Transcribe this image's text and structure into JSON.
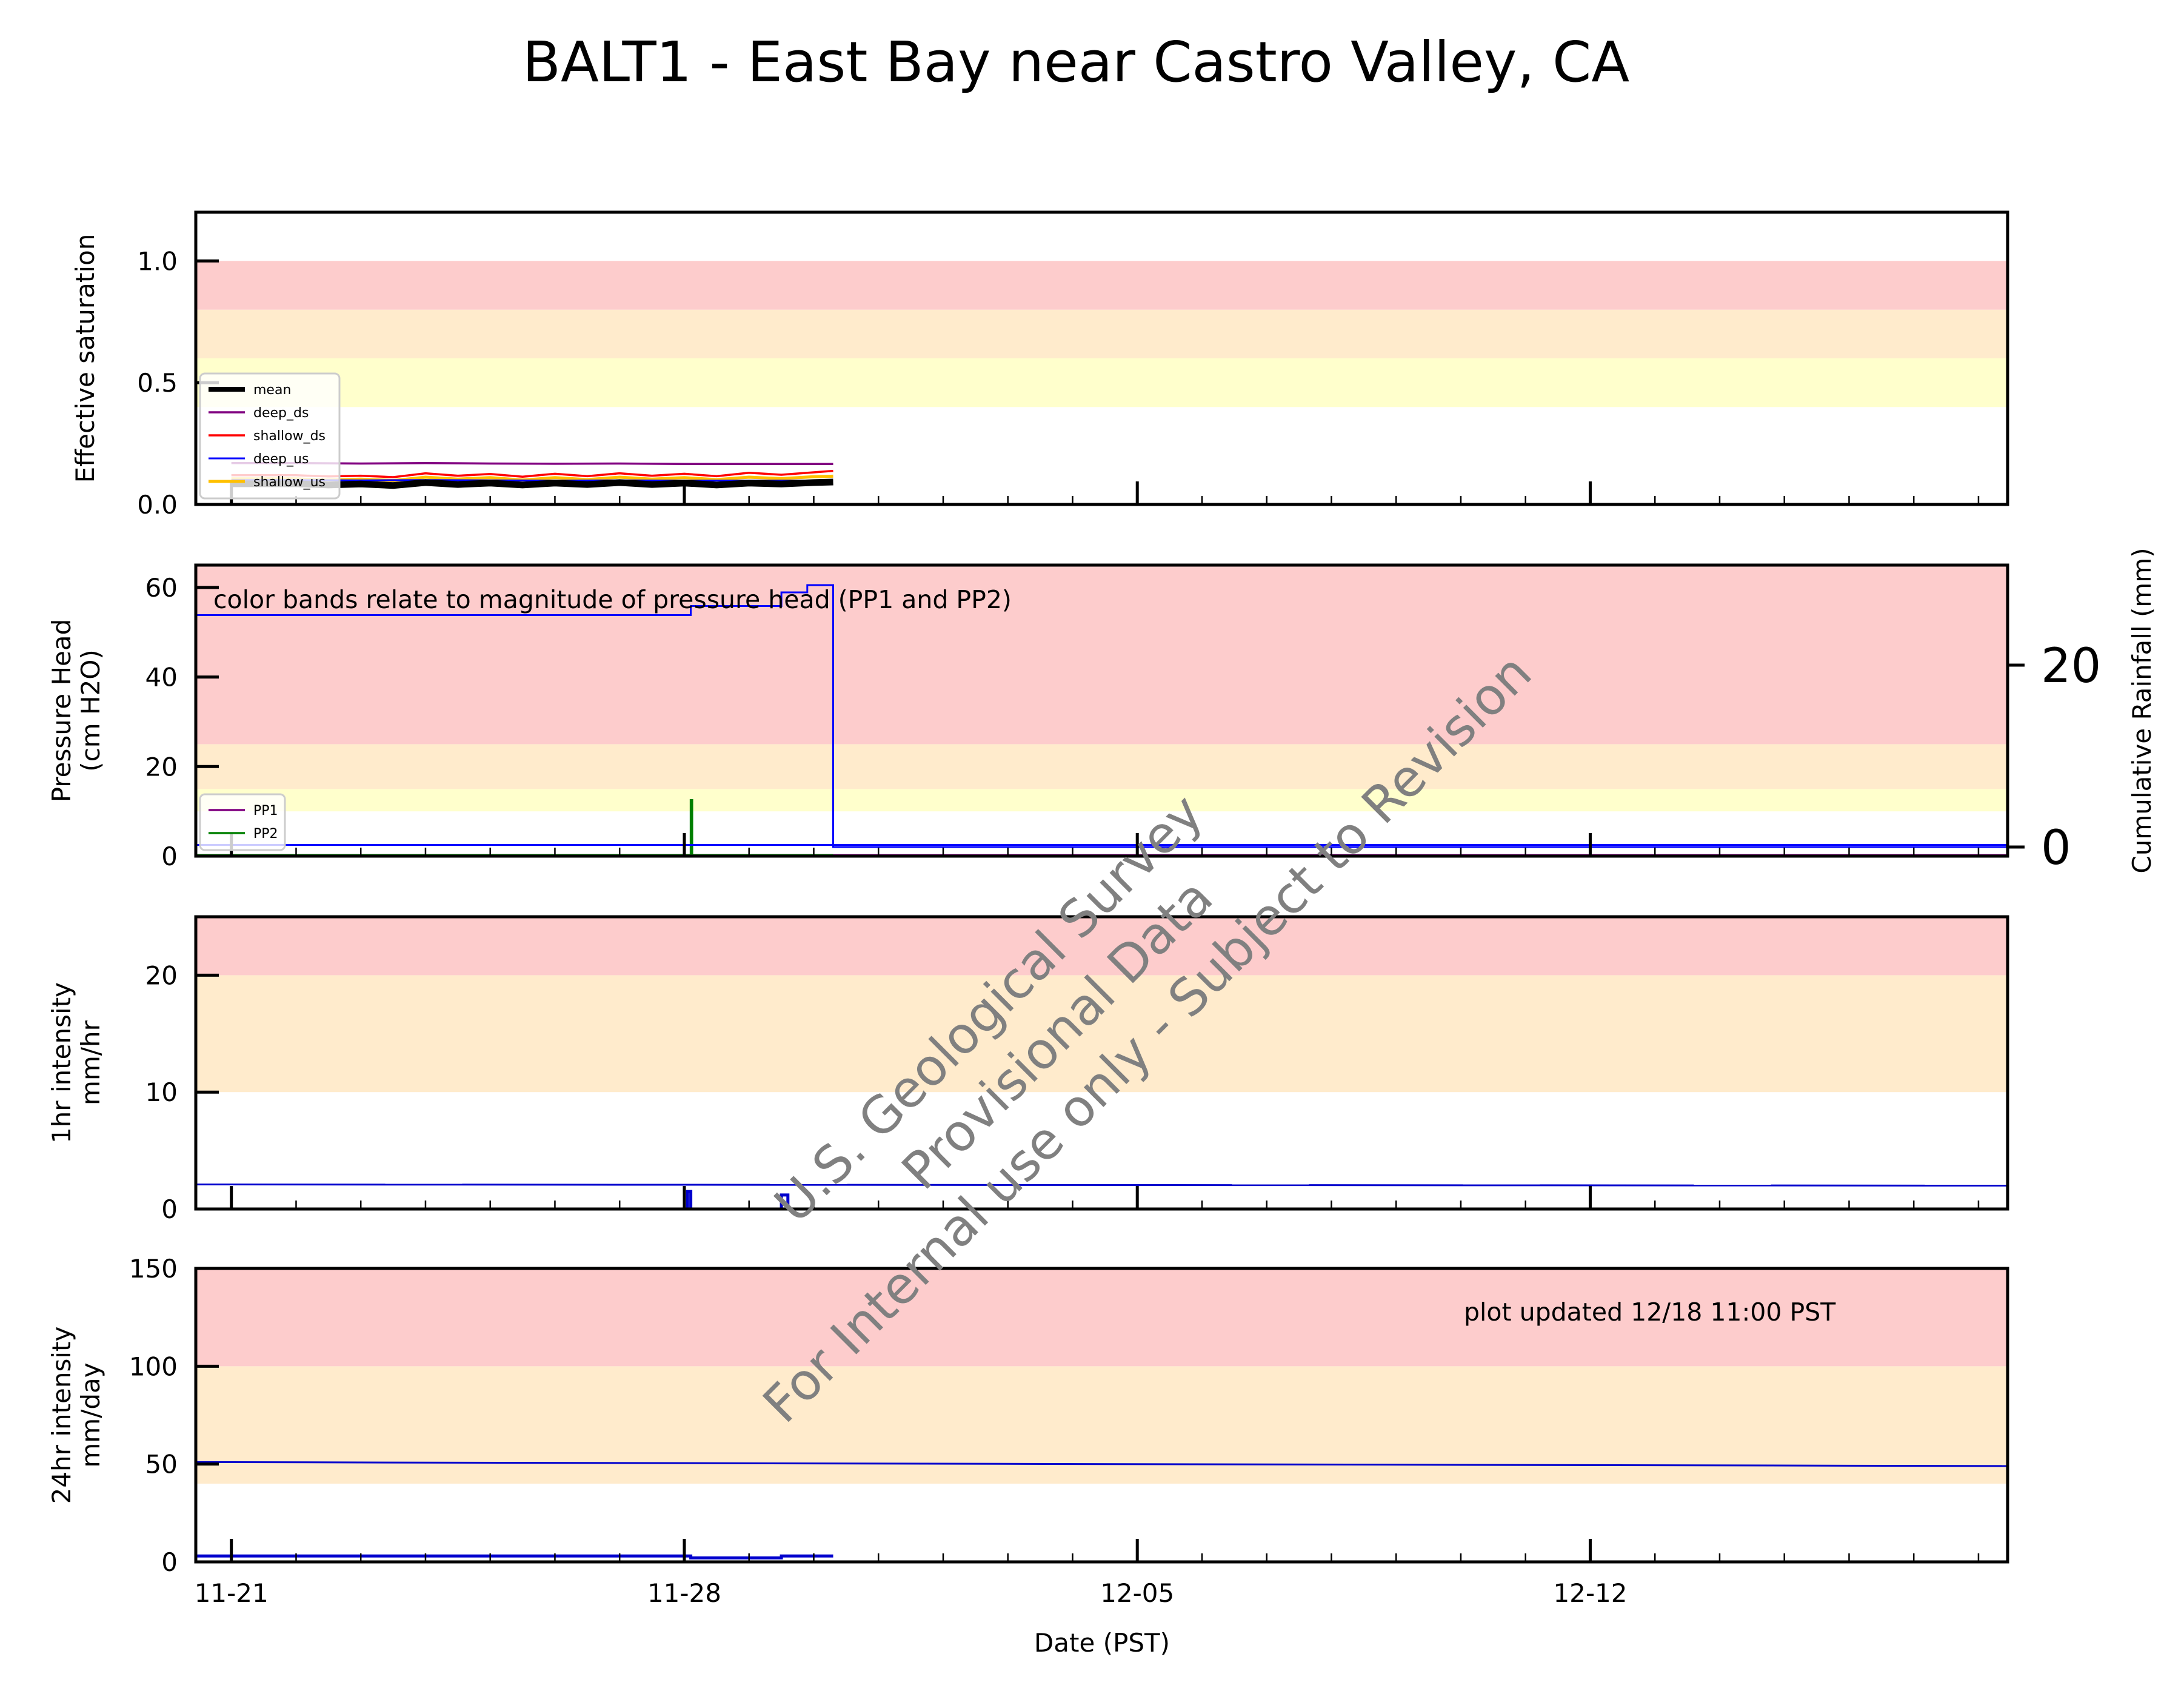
{
  "title": "BALT1 - East Bay near Castro Valley, CA",
  "watermark": [
    "U.S. Geological Survey",
    "Provisional Data",
    "For Internal use only - Subject to Revision"
  ],
  "annotations": {
    "color_bands": "color bands relate to magnitude of pressure head (PP1 and PP2)",
    "updated": "plot updated 12/18 11:00  PST"
  },
  "xaxis": {
    "label": "Date (PST)",
    "tick_labels": [
      "11-21",
      "11-28",
      "12-05",
      "12-12"
    ],
    "tick_values": [
      0,
      7,
      14,
      21
    ],
    "xlim": [
      -0.55,
      27.45
    ],
    "minor_step": 1
  },
  "colors": {
    "red_band": "#fdcccc",
    "orange_band": "#ffebcc",
    "yellow_band": "#ffffcc",
    "mean": "#000000",
    "deep_ds": "#800080",
    "shallow_ds": "#ff0000",
    "deep_us": "#0000ff",
    "shallow_us": "#ffc000",
    "PP1": "#800080",
    "PP2": "#008000",
    "rain": "#0000cd",
    "watermark": "#808080"
  },
  "chart_data": [
    {
      "type": "line",
      "id": "saturation",
      "ylabel": [
        "Effective saturation"
      ],
      "ylim": [
        0,
        1.2
      ],
      "yticks": [
        0,
        0.5,
        1.0
      ],
      "ytick_labels": [
        "0.0",
        "0.5",
        "1.0"
      ],
      "bands": [
        {
          "from": 0.4,
          "to": 0.6,
          "color": "yellow"
        },
        {
          "from": 0.6,
          "to": 0.8,
          "color": "orange"
        },
        {
          "from": 0.8,
          "to": 1.0,
          "color": "red"
        }
      ],
      "legend": {
        "placement": "lower-left",
        "entries": [
          "mean",
          "deep_ds",
          "shallow_ds",
          "deep_us",
          "shallow_us"
        ]
      },
      "series": [
        {
          "name": "deep_ds",
          "x": [
            0,
            1,
            2,
            3,
            4,
            5,
            6,
            7,
            8,
            9,
            9.3
          ],
          "y": [
            0.17,
            0.17,
            0.168,
            0.17,
            0.168,
            0.167,
            0.168,
            0.166,
            0.166,
            0.166,
            0.166
          ]
        },
        {
          "name": "shallow_ds",
          "x": [
            0,
            1,
            1.5,
            2,
            2.5,
            3,
            3.5,
            4,
            4.5,
            5,
            5.5,
            6,
            6.5,
            7,
            7.5,
            8,
            8.5,
            9,
            9.3
          ],
          "y": [
            0.12,
            0.12,
            0.115,
            0.118,
            0.112,
            0.128,
            0.118,
            0.125,
            0.114,
            0.126,
            0.116,
            0.128,
            0.118,
            0.126,
            0.116,
            0.13,
            0.122,
            0.132,
            0.138
          ]
        },
        {
          "name": "shallow_us",
          "x": [
            0,
            1,
            1.5,
            2,
            2.5,
            3,
            3.5,
            4,
            4.5,
            5,
            5.5,
            6,
            6.5,
            7,
            7.5,
            8,
            8.5,
            9,
            9.3
          ],
          "y": [
            0.105,
            0.105,
            0.1,
            0.104,
            0.098,
            0.112,
            0.104,
            0.11,
            0.1,
            0.11,
            0.102,
            0.112,
            0.104,
            0.11,
            0.102,
            0.112,
            0.106,
            0.114,
            0.116
          ]
        },
        {
          "name": "deep_us",
          "x": [
            0,
            1,
            2,
            3,
            4,
            5,
            6,
            7,
            8,
            9,
            9.3
          ],
          "y": [
            0.1,
            0.1,
            0.099,
            0.1,
            0.099,
            0.098,
            0.099,
            0.098,
            0.098,
            0.098,
            0.098
          ]
        },
        {
          "name": "mean",
          "x": [
            0,
            1,
            1.5,
            2,
            2.5,
            3,
            3.5,
            4,
            4.5,
            5,
            5.5,
            6,
            6.5,
            7,
            7.5,
            8,
            8.5,
            9,
            9.3
          ],
          "y": [
            0.085,
            0.085,
            0.08,
            0.084,
            0.078,
            0.09,
            0.082,
            0.088,
            0.08,
            0.088,
            0.082,
            0.09,
            0.082,
            0.088,
            0.08,
            0.088,
            0.084,
            0.09,
            0.092
          ]
        }
      ]
    },
    {
      "type": "line",
      "id": "pressure",
      "ylabel": [
        "Pressure Head",
        "(cm H2O)"
      ],
      "ylim": [
        0,
        65
      ],
      "yticks": [
        0,
        20,
        40,
        60
      ],
      "ytick_labels": [
        "0",
        "20",
        "40",
        "60"
      ],
      "y2label": "Cumulative Rainfall (mm)",
      "y2lim": [
        -1,
        31
      ],
      "y2ticks": [
        0,
        20
      ],
      "y2tick_labels": [
        "0",
        "20"
      ],
      "bands": [
        {
          "from": 10,
          "to": 15,
          "color": "yellow"
        },
        {
          "from": 15,
          "to": 25,
          "color": "orange"
        },
        {
          "from": 25,
          "to": 65,
          "color": "red"
        }
      ],
      "legend": {
        "placement": "lower-left",
        "entries": [
          "PP1",
          "PP2"
        ]
      },
      "series": [
        {
          "name": "PP1",
          "x": [
            -0.55,
            27.45
          ],
          "y": [
            0.2,
            0.2
          ]
        },
        {
          "name": "PP2",
          "x": [
            -0.55,
            7.1,
            7.1,
            7.12,
            7.12,
            9.3
          ],
          "y": [
            0.2,
            0.2,
            12.5,
            12.5,
            0.2,
            0.2
          ]
        },
        {
          "name": "cumulative_rainfall",
          "axis": "right",
          "steps": true,
          "x": [
            -0.55,
            7.1,
            7.1,
            8.5,
            8.5,
            8.9,
            8.9,
            9.3,
            9.3,
            27.45
          ],
          "y": [
            25.5,
            25.5,
            26.5,
            26.5,
            28,
            28,
            28.8,
            28.8,
            0,
            0
          ]
        },
        {
          "name": "cumulative_rainfall_level",
          "axis": "left",
          "x": [
            -0.55,
            27.45
          ],
          "y": [
            2.5,
            2.5
          ]
        }
      ]
    },
    {
      "type": "line",
      "id": "intensity_1hr",
      "ylabel": [
        "1hr intensity",
        "mm/hr"
      ],
      "ylim": [
        0,
        25
      ],
      "yticks": [
        0,
        10,
        20
      ],
      "ytick_labels": [
        "0",
        "10",
        "20"
      ],
      "bands": [
        {
          "from": 10,
          "to": 20,
          "color": "orange"
        },
        {
          "from": 20,
          "to": 25,
          "color": "red"
        }
      ],
      "series": [
        {
          "name": "threshold",
          "x": [
            -0.55,
            27.45
          ],
          "y": [
            2.1,
            2.0
          ]
        },
        {
          "name": "rain_1hr",
          "x": [
            -0.55,
            7.05,
            7.05,
            7.1,
            7.1,
            8.5,
            8.5,
            8.6,
            8.6,
            9.3
          ],
          "y": [
            0,
            0,
            1.5,
            1.5,
            0,
            0,
            1.2,
            1.2,
            0,
            0
          ]
        }
      ]
    },
    {
      "type": "line",
      "id": "intensity_24hr",
      "ylabel": [
        "24hr intensity",
        "mm/day"
      ],
      "ylim": [
        0,
        150
      ],
      "yticks": [
        0,
        50,
        100,
        150
      ],
      "ytick_labels": [
        "0",
        "50",
        "100",
        "150"
      ],
      "bands": [
        {
          "from": 40,
          "to": 100,
          "color": "orange"
        },
        {
          "from": 100,
          "to": 150,
          "color": "red"
        }
      ],
      "series": [
        {
          "name": "threshold",
          "x": [
            -0.55,
            27.45
          ],
          "y": [
            51,
            49
          ]
        },
        {
          "name": "rain_24hr",
          "x": [
            -0.55,
            7.1,
            7.1,
            8.5,
            8.5,
            9.3
          ],
          "y": [
            3,
            3,
            2,
            2,
            3,
            3
          ]
        }
      ]
    }
  ]
}
